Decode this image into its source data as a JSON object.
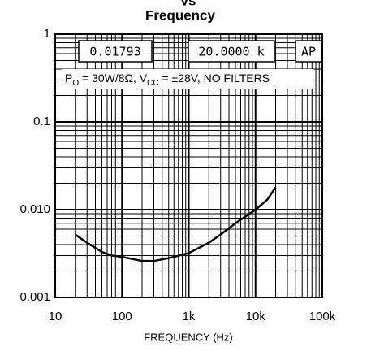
{
  "chart_data": {
    "type": "line",
    "title": [
      "vs",
      "Frequency"
    ],
    "x_label": "FREQUENCY (Hz)",
    "log_x": true,
    "log_y": true,
    "grid": true,
    "xlim": [
      10,
      100000
    ],
    "xticks": [
      10,
      100,
      {
        "value": 1000,
        "label": "1k"
      },
      {
        "value": 10000,
        "label": "10k"
      },
      {
        "value": 100000,
        "label": "100k"
      }
    ],
    "ylim": [
      0.001,
      1
    ],
    "yticks": [
      0.001,
      {
        "value": 0.01,
        "label": "0.010"
      },
      0.1,
      1
    ],
    "readouts": [
      "0.01793",
      "20.0000 k",
      "AP"
    ],
    "annotation": [
      "P",
      "O",
      " = 30W/8Ω, V",
      "CC",
      " = ±28V, NO FILTERS"
    ],
    "x": [
      20,
      30,
      50,
      70,
      100,
      200,
      300,
      500,
      1000,
      2000,
      3000,
      5000,
      10000,
      15000,
      20000
    ],
    "series": [
      {
        "color": "#000000",
        "values": [
          0.0052,
          0.0042,
          0.0033,
          0.003,
          0.0029,
          0.0026,
          0.0026,
          0.0028,
          0.0032,
          0.0042,
          0.0052,
          0.007,
          0.01,
          0.013,
          0.018
        ]
      }
    ]
  }
}
